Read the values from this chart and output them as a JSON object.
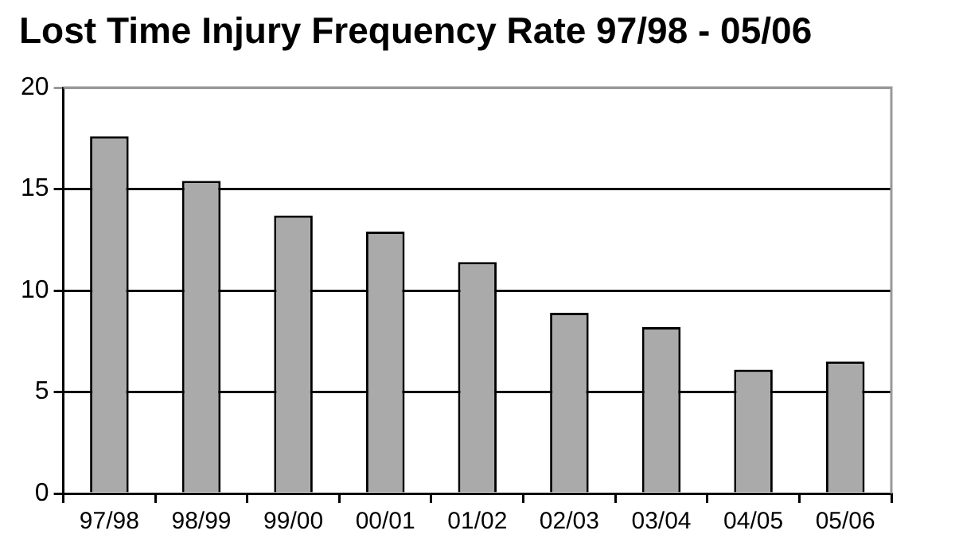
{
  "chart_data": {
    "type": "bar",
    "title": "Lost Time Injury Frequency Rate 97/98 - 05/06",
    "categories": [
      "97/98",
      "98/99",
      "99/00",
      "00/01",
      "01/02",
      "02/03",
      "03/04",
      "04/05",
      "05/06"
    ],
    "values": [
      17.6,
      15.4,
      13.7,
      12.9,
      11.4,
      8.9,
      8.2,
      6.1,
      6.5
    ],
    "color": "#aaaaaa",
    "ylim": [
      0,
      20
    ],
    "yticks": [
      0,
      5,
      10,
      15,
      20
    ],
    "grid": "y",
    "legend": false
  }
}
